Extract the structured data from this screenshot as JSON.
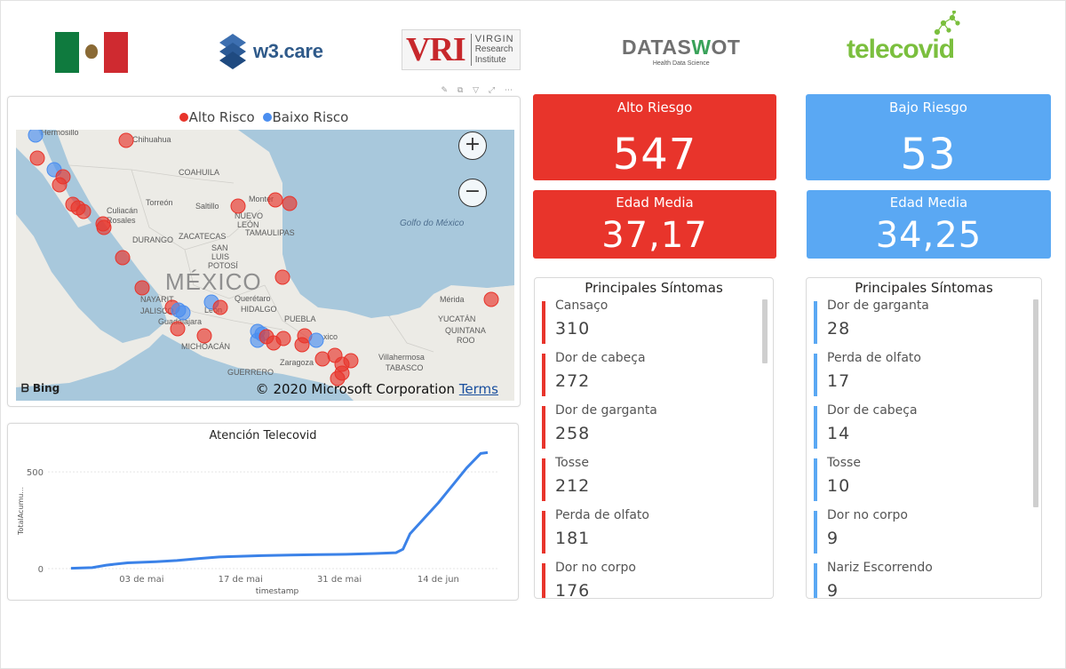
{
  "header": {
    "logos": {
      "w3care": "w3.care",
      "vri_big": "VRI",
      "vri_line1": "VIRGIN",
      "vri_line2": "Research",
      "vri_line3": "Institute",
      "dataswot_a": "DATAS",
      "dataswot_b": "W",
      "dataswot_c": "OT",
      "dataswot_sub": "Health Data Science",
      "telecovid": "telecovid"
    }
  },
  "map": {
    "legend": {
      "alto": "Alto Risco",
      "baixo": "Baixo Risco",
      "alto_color": "#e8342b",
      "baixo_color": "#4a8ef0"
    },
    "zoom_in": "+",
    "zoom_out": "−",
    "bing": "Bing",
    "copyright": "© 2020 Microsoft Corporation",
    "terms": "Terms",
    "places": {
      "hermosillo": "Hermosillo",
      "chihuahua": "Chihuahua",
      "coahuila": "COAHUILA",
      "torreon": "Torreón",
      "saltillo": "Saltillo",
      "monterrey": "Monter",
      "nuevo": "NUEVO",
      "leon_state": "LEÓN",
      "culiacan": "Culiacán",
      "rosales": "Rosales",
      "durango": "DURANGO",
      "zacatecas": "ZACATECAS",
      "tamaulipas": "TAMAULIPAS",
      "san": "SAN",
      "luis": "LUIS",
      "potosi": "POTOSÍ",
      "mexico_big": "MÉXICO",
      "golfo": "Golfo do México",
      "nayarit": "NAYARIT",
      "jalisco": "JALISCO",
      "guadalajara": "Guadalajara",
      "leon": "León",
      "queretaro": "Querétaro",
      "hidalgo": "HIDALGO",
      "michoacan": "MICHOACÁN",
      "puebla": "PUEBLA",
      "zaragoza": "Zaragoza",
      "guerrero": "GUERRERO",
      "villahermosa": "Villahermosa",
      "tabasco": "TABASCO",
      "merida": "Mérida",
      "yucatan": "YUCATÁN",
      "quintana": "QUINTANA",
      "roo": "ROO",
      "xico": "xico"
    }
  },
  "chart": {
    "title": "Atención Telecovid",
    "chart_data": {
      "type": "line",
      "title": "Atención Telecovid",
      "xlabel": "timestamp",
      "ylabel": "TotalAcumu...",
      "x_ticks": [
        "03 de mai",
        "17 de mai",
        "31 de mai",
        "14 de jun"
      ],
      "y_ticks": [
        0,
        500
      ],
      "ylim": [
        0,
        620
      ],
      "grid": true,
      "series": [
        {
          "color": "#3b82e8",
          "x": [
            "2020-04-23",
            "2020-04-26",
            "2020-04-28",
            "2020-05-01",
            "2020-05-05",
            "2020-05-08",
            "2020-05-11",
            "2020-05-14",
            "2020-05-17",
            "2020-05-20",
            "2020-05-24",
            "2020-05-28",
            "2020-06-01",
            "2020-06-05",
            "2020-06-08",
            "2020-06-09",
            "2020-06-10",
            "2020-06-12",
            "2020-06-14",
            "2020-06-16",
            "2020-06-18",
            "2020-06-20",
            "2020-06-21"
          ],
          "y": [
            2,
            5,
            18,
            30,
            36,
            42,
            52,
            60,
            64,
            67,
            70,
            72,
            74,
            78,
            82,
            100,
            180,
            260,
            340,
            430,
            520,
            595,
            600
          ]
        }
      ]
    }
  },
  "kpis": {
    "alto": {
      "label": "Alto Riesgo",
      "value": "547",
      "color": "#e8342b"
    },
    "bajo": {
      "label": "Bajo Riesgo",
      "value": "53",
      "color": "#5aa8f3"
    },
    "edad_alto": {
      "label": "Edad Media",
      "value": "37,17"
    },
    "edad_bajo": {
      "label": "Edad Media",
      "value": "34,25"
    }
  },
  "symptoms_alto": {
    "title": "Principales Síntomas",
    "items": [
      {
        "name": "Cansaço",
        "value": "310"
      },
      {
        "name": "Dor de cabeça",
        "value": "272"
      },
      {
        "name": "Dor de garganta",
        "value": "258"
      },
      {
        "name": "Tosse",
        "value": "212"
      },
      {
        "name": "Perda de olfato",
        "value": "181"
      },
      {
        "name": "Dor no corpo",
        "value": "176"
      }
    ]
  },
  "symptoms_bajo": {
    "title": "Principales Síntomas",
    "items": [
      {
        "name": "Dor de garganta",
        "value": "28"
      },
      {
        "name": "Perda de olfato",
        "value": "17"
      },
      {
        "name": "Dor de cabeça",
        "value": "14"
      },
      {
        "name": "Tosse",
        "value": "10"
      },
      {
        "name": "Dor no corpo",
        "value": "9"
      },
      {
        "name": "Nariz Escorrendo",
        "value": "9"
      }
    ]
  }
}
